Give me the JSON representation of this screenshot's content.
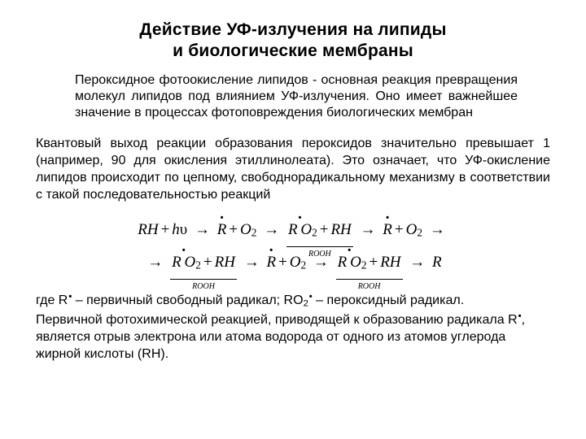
{
  "title_line1": "Действие УФ-излучения на липиды",
  "title_line2": "и биологические мембраны",
  "para1": "Пероксидное фотоокисление липидов - основная реакция превращения молекул липидов под влиянием УФ-излучения. Оно имеет важнейшее значение в процессах фотоповреждения биологических мембран",
  "para2": "Квантовый выход реакции образования пероксидов значительно превышает 1 (например, 90 для окисления этиллинолеата). Это означает, что УФ-окисление липидов происходит по цепному, свободнорадикальному механизму в соответствии с такой последовательностью реакций",
  "eq": {
    "caption": "ROOH",
    "t_RH": "RH",
    "t_h": "h",
    "t_nu": "υ",
    "t_R": "R",
    "t_O2": "O",
    "t_sub2": "2"
  },
  "para3_a": "где R",
  "para3_b": " – первичный свободный радикал; RO",
  "para3_c": " – пероксидный радикал.",
  "para3_d": "Первичной фотохимической реакцией, приводящей к образованию радикала R",
  "para3_e": ", является отрыв электрона или атома водорода от одного из атомов углерода жирной кислоты (RH).",
  "colors": {
    "text": "#000000",
    "background": "#ffffff"
  },
  "fontsizes": {
    "title": 21,
    "body": 16,
    "equation": 19,
    "caption": 10
  }
}
